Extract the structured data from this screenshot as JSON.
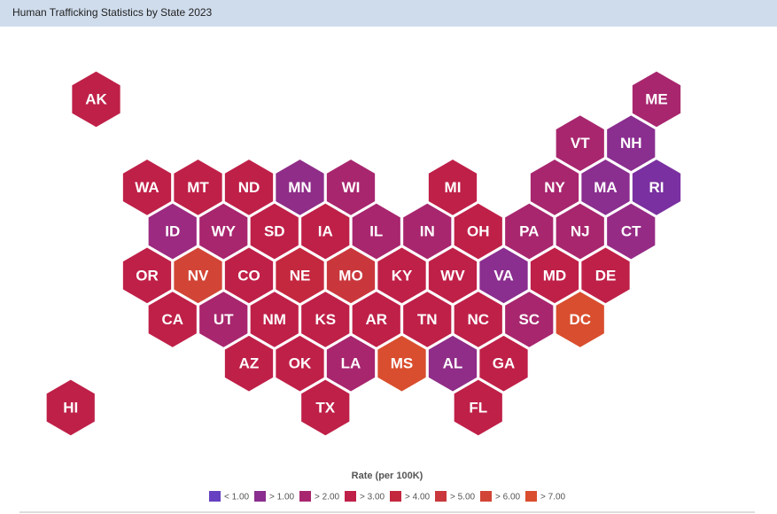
{
  "header": {
    "title": "Human Trafficking Statistics by State 2023"
  },
  "map": {
    "tiles": [
      {
        "label": "AK",
        "color": "#bf2048"
      },
      {
        "label": "ME",
        "color": "#a8266e"
      },
      {
        "label": "VT",
        "color": "#a8266e"
      },
      {
        "label": "NH",
        "color": "#8a2e8f"
      },
      {
        "label": "WA",
        "color": "#bf2048"
      },
      {
        "label": "MT",
        "color": "#bf2048"
      },
      {
        "label": "ND",
        "color": "#bf2048"
      },
      {
        "label": "MN",
        "color": "#8f2d88"
      },
      {
        "label": "WI",
        "color": "#a8266e"
      },
      {
        "label": "MI",
        "color": "#bf2048"
      },
      {
        "label": "NY",
        "color": "#a8266e"
      },
      {
        "label": "MA",
        "color": "#8a2e8f"
      },
      {
        "label": "RI",
        "color": "#7a30a0"
      },
      {
        "label": "ID",
        "color": "#9c2a80"
      },
      {
        "label": "WY",
        "color": "#a8266e"
      },
      {
        "label": "SD",
        "color": "#bf2048"
      },
      {
        "label": "IA",
        "color": "#bf2048"
      },
      {
        "label": "IL",
        "color": "#a8266e"
      },
      {
        "label": "IN",
        "color": "#a8266e"
      },
      {
        "label": "OH",
        "color": "#bf2048"
      },
      {
        "label": "PA",
        "color": "#a8266e"
      },
      {
        "label": "NJ",
        "color": "#a8266e"
      },
      {
        "label": "CT",
        "color": "#962b86"
      },
      {
        "label": "OR",
        "color": "#bf2048"
      },
      {
        "label": "NV",
        "color": "#d24536"
      },
      {
        "label": "CO",
        "color": "#bf2048"
      },
      {
        "label": "NE",
        "color": "#c4283f"
      },
      {
        "label": "MO",
        "color": "#c9373c"
      },
      {
        "label": "KY",
        "color": "#bf2048"
      },
      {
        "label": "WV",
        "color": "#bf2048"
      },
      {
        "label": "VA",
        "color": "#8a2e8f"
      },
      {
        "label": "MD",
        "color": "#bf2048"
      },
      {
        "label": "DE",
        "color": "#bf2048"
      },
      {
        "label": "CA",
        "color": "#bf2048"
      },
      {
        "label": "UT",
        "color": "#a8266e"
      },
      {
        "label": "NM",
        "color": "#bf2048"
      },
      {
        "label": "KS",
        "color": "#bf2048"
      },
      {
        "label": "AR",
        "color": "#bf2048"
      },
      {
        "label": "TN",
        "color": "#bf2048"
      },
      {
        "label": "NC",
        "color": "#bf2048"
      },
      {
        "label": "SC",
        "color": "#a8266e"
      },
      {
        "label": "DC",
        "color": "#d94e2e"
      },
      {
        "label": "AZ",
        "color": "#bf2048"
      },
      {
        "label": "OK",
        "color": "#bf2048"
      },
      {
        "label": "LA",
        "color": "#a8266e"
      },
      {
        "label": "MS",
        "color": "#d94e2e"
      },
      {
        "label": "AL",
        "color": "#8f2d88"
      },
      {
        "label": "GA",
        "color": "#bf2048"
      },
      {
        "label": "HI",
        "color": "#bf2048"
      },
      {
        "label": "TX",
        "color": "#bf2048"
      },
      {
        "label": "FL",
        "color": "#bf2048"
      }
    ]
  },
  "legend": {
    "title": "Rate (per 100K)",
    "items": [
      {
        "label": "< 1.00",
        "color": "#6640c0"
      },
      {
        "label": "> 1.00",
        "color": "#8a2e8f"
      },
      {
        "label": "> 2.00",
        "color": "#a8266e"
      },
      {
        "label": "> 3.00",
        "color": "#bf2048"
      },
      {
        "label": "> 4.00",
        "color": "#c4283f"
      },
      {
        "label": "> 5.00",
        "color": "#c9373c"
      },
      {
        "label": "> 6.00",
        "color": "#d24536"
      },
      {
        "label": "> 7.00",
        "color": "#d94e2e"
      }
    ]
  }
}
